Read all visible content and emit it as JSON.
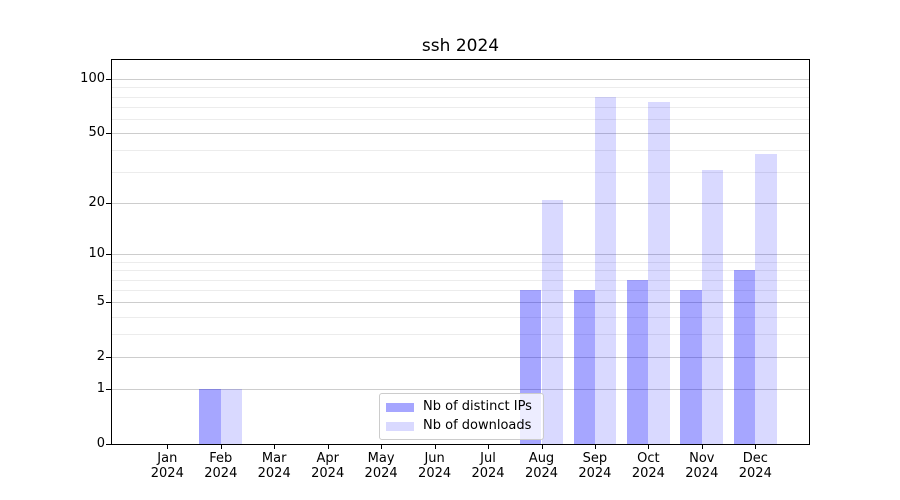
{
  "chart_data": {
    "type": "bar",
    "title": "ssh 2024",
    "categories": [
      "Jan",
      "Feb",
      "Mar",
      "Apr",
      "May",
      "Jun",
      "Jul",
      "Aug",
      "Sep",
      "Oct",
      "Nov",
      "Dec"
    ],
    "x_year_label": "2024",
    "series": [
      {
        "name": "Nb of distinct IPs",
        "values": [
          0,
          1,
          0,
          0,
          0,
          0,
          0,
          6,
          6,
          7,
          6,
          8
        ],
        "color": "#a6a6ff",
        "fill": "rgba(0,0,255,0.35)"
      },
      {
        "name": "Nb of downloads",
        "values": [
          0,
          1,
          0,
          0,
          0,
          0,
          0,
          21,
          80,
          75,
          31,
          38
        ],
        "color": "#d9d9ff",
        "fill": "rgba(0,0,255,0.15)"
      }
    ],
    "xlabel": "",
    "ylabel": "",
    "y_scale": "log1p",
    "y_major_ticks": [
      0,
      1,
      2,
      5,
      10,
      20,
      50,
      100
    ],
    "y_minor_ticks": [
      3,
      4,
      6,
      7,
      8,
      9,
      30,
      40,
      60,
      70,
      80,
      90
    ],
    "ylim": [
      0,
      127.5
    ],
    "grid": true,
    "legend_position": "lower center",
    "colors": {
      "grid_major": "#cdcdcd",
      "grid_minor": "#ececec",
      "axis": "#000000",
      "background": "#ffffff"
    }
  }
}
